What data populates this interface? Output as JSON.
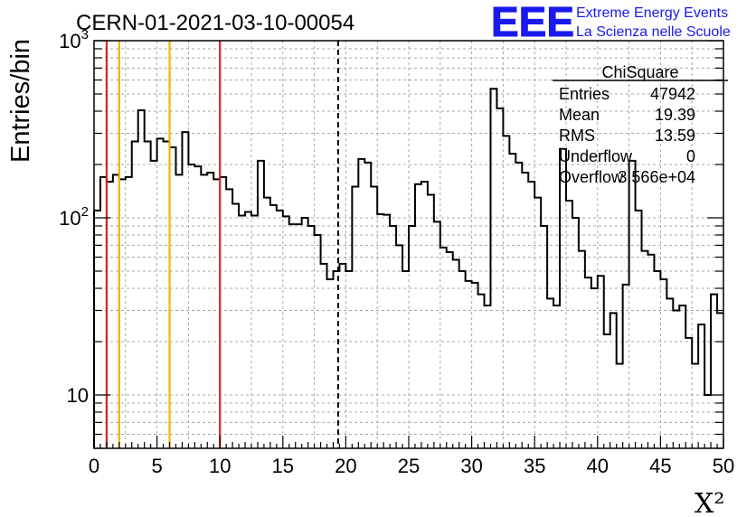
{
  "logo": {
    "text": "EEE",
    "line1": "Extreme Energy Events",
    "line2": "La Scienza nelle Scuole",
    "color": "#1a1aee"
  },
  "chart_data": {
    "type": "histogram",
    "title": "CERN-01-2021-03-10-00054",
    "xlabel": "X²",
    "ylabel": "Entries/bin",
    "xlim": [
      0,
      50
    ],
    "ylim": [
      5,
      1000
    ],
    "yscale": "log",
    "grid": true,
    "bin_width": 0.5,
    "x_ticks": [
      "0",
      "5",
      "10",
      "15",
      "20",
      "25",
      "30",
      "35",
      "40",
      "45",
      "50"
    ],
    "y_ticks": [
      {
        "value": 10,
        "base": "10",
        "exp": ""
      },
      {
        "value": 100,
        "base": "10",
        "exp": "2"
      },
      {
        "value": 1000,
        "base": "10",
        "exp": "3"
      }
    ],
    "values": [
      110,
      170,
      160,
      175,
      165,
      170,
      270,
      405,
      270,
      210,
      280,
      270,
      250,
      175,
      305,
      200,
      195,
      175,
      180,
      165,
      170,
      145,
      120,
      103,
      108,
      103,
      210,
      130,
      118,
      110,
      102,
      92,
      92,
      100,
      90,
      80,
      55,
      45,
      50,
      55,
      50,
      150,
      215,
      205,
      150,
      105,
      104,
      90,
      70,
      50,
      90,
      155,
      160,
      135,
      95,
      68,
      64,
      58,
      50,
      44,
      43,
      37,
      32,
      535,
      415,
      290,
      230,
      205,
      180,
      160,
      130,
      90,
      35,
      32,
      245,
      125,
      100,
      65,
      46,
      40,
      47,
      22,
      29,
      15,
      42,
      210,
      110,
      65,
      62,
      50,
      45,
      35,
      30,
      32,
      21,
      15,
      25,
      10,
      37,
      29
    ],
    "vlines": [
      {
        "x": 1,
        "color": "#dd2222",
        "style": "solid"
      },
      {
        "x": 2,
        "color": "#f0b400",
        "style": "solid"
      },
      {
        "x": 6,
        "color": "#f0b400",
        "style": "solid"
      },
      {
        "x": 10,
        "color": "#dd2222",
        "style": "solid"
      },
      {
        "x": 19.39,
        "color": "#000000",
        "style": "dashed"
      }
    ],
    "stats": {
      "name": "ChiSquare",
      "rows": [
        {
          "label": "Entries",
          "value": "47942"
        },
        {
          "label": "Mean",
          "value": "19.39"
        },
        {
          "label": "RMS",
          "value": "13.59"
        },
        {
          "label": "Underflow",
          "value": "0"
        },
        {
          "label": "Overflow",
          "value": "3.566e+04"
        }
      ]
    }
  }
}
